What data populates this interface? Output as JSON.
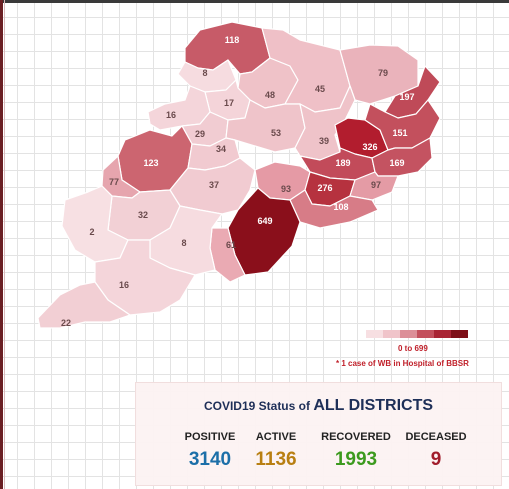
{
  "map": {
    "districts": [
      {
        "id": "d118",
        "value": "118",
        "fill": "#c75b68"
      },
      {
        "id": "d8",
        "value": "8",
        "fill": "#f6dce0"
      },
      {
        "id": "d17",
        "value": "17",
        "fill": "#f4d4d9"
      },
      {
        "id": "d48",
        "value": "48",
        "fill": "#efc2c8"
      },
      {
        "id": "d45",
        "value": "45",
        "fill": "#efc0c7"
      },
      {
        "id": "d79",
        "value": "79",
        "fill": "#eab3bb"
      },
      {
        "id": "d197",
        "value": "197",
        "fill": "#bf4a58"
      },
      {
        "id": "d16",
        "value": "16",
        "fill": "#f4d5da"
      },
      {
        "id": "d29",
        "value": "29",
        "fill": "#f1ccd2"
      },
      {
        "id": "d53",
        "value": "53",
        "fill": "#efc4ca"
      },
      {
        "id": "d39",
        "value": "39",
        "fill": "#efc3c9"
      },
      {
        "id": "d326",
        "value": "326",
        "fill": "#b21d2e"
      },
      {
        "id": "d151",
        "value": "151",
        "fill": "#c3505d"
      },
      {
        "id": "d123",
        "value": "123",
        "fill": "#cc6570"
      },
      {
        "id": "d34",
        "value": "34",
        "fill": "#f1cad0"
      },
      {
        "id": "d189",
        "value": "189",
        "fill": "#c24b5a"
      },
      {
        "id": "d169",
        "value": "169",
        "fill": "#c45361"
      },
      {
        "id": "d77",
        "value": "77",
        "fill": "#e6a5ae"
      },
      {
        "id": "d37",
        "value": "37",
        "fill": "#f1cbd1"
      },
      {
        "id": "d93",
        "value": "93",
        "fill": "#e59aa5"
      },
      {
        "id": "d276",
        "value": "276",
        "fill": "#b6323f"
      },
      {
        "id": "d97",
        "value": "97",
        "fill": "#e49ba5"
      },
      {
        "id": "d108",
        "value": "108",
        "fill": "#d77c87"
      },
      {
        "id": "d32",
        "value": "32",
        "fill": "#f2d0d5"
      },
      {
        "id": "d2",
        "value": "2",
        "fill": "#f7e0e3"
      },
      {
        "id": "d649",
        "value": "649",
        "fill": "#8a0f1b"
      },
      {
        "id": "d61",
        "value": "61",
        "fill": "#eaaab3"
      },
      {
        "id": "dx8",
        "value": "8",
        "fill": "#f6dce0"
      },
      {
        "id": "d16b",
        "value": "16",
        "fill": "#f4d5da"
      },
      {
        "id": "d22",
        "value": "22",
        "fill": "#f2cfd4"
      }
    ]
  },
  "legend": {
    "colors": [
      "#f7dfe2",
      "#f0c4ca",
      "#dc8f98",
      "#c3505d",
      "#a92434",
      "#7e0f18"
    ],
    "range": "0 to 699",
    "note": "* 1 case of WB in Hospital of BBSR"
  },
  "status": {
    "title_prefix": "COVID19 Status of",
    "title_emph": "ALL DISTRICTS",
    "stats": [
      {
        "label": "POSITIVE",
        "value": "3140",
        "color": "#1c6fa8"
      },
      {
        "label": "ACTIVE",
        "value": "1136",
        "color": "#b87f12"
      },
      {
        "label": "RECOVERED",
        "value": "1993",
        "color": "#3c9a1e"
      },
      {
        "label": "DECEASED",
        "value": "9",
        "color": "#a11c2b"
      }
    ]
  }
}
